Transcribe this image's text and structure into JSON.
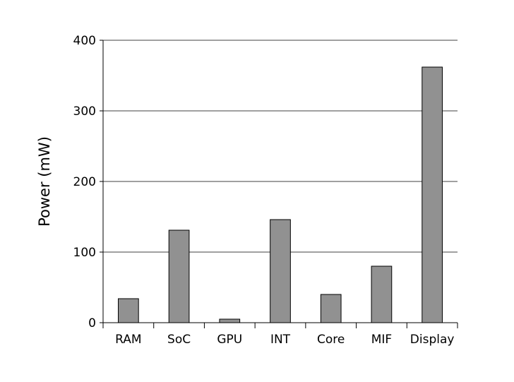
{
  "chart_data": {
    "type": "bar",
    "categories": [
      "RAM",
      "SoC",
      "GPU",
      "INT",
      "Core",
      "MIF",
      "Display"
    ],
    "values": [
      34,
      131,
      5,
      146,
      40,
      80,
      362
    ],
    "title": "",
    "xlabel": "",
    "ylabel": "Power (mW)",
    "ylim": [
      0,
      400
    ],
    "yticks": [
      "0",
      "100",
      "200",
      "300",
      "400"
    ],
    "grid": "horizontal",
    "bar_color": "#919191",
    "edge_color": "#000000"
  }
}
